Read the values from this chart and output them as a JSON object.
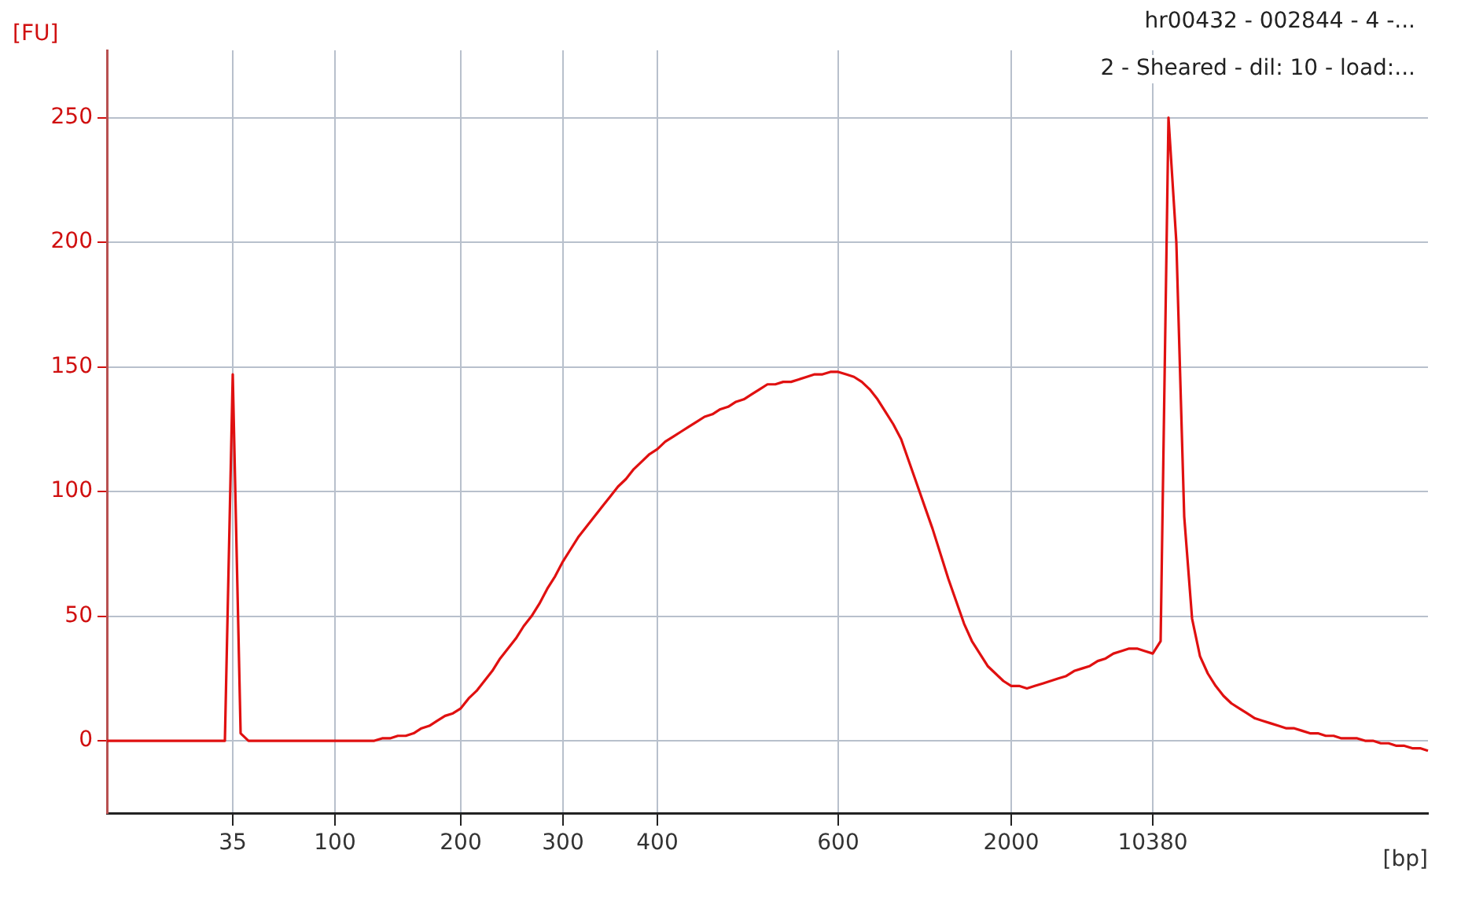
{
  "chart_data": {
    "type": "line",
    "xlabel": "[bp]",
    "ylabel": "[FU]",
    "annotations": [
      "hr00432 - 002844 - 4 -...",
      "2 - Sheared - dil: 10 - load:..."
    ],
    "categories": [
      null,
      null,
      null,
      null,
      null,
      null,
      null,
      null,
      null,
      null,
      null,
      null,
      null,
      null,
      null,
      null,
      "35",
      null,
      null,
      null,
      null,
      null,
      null,
      null,
      null,
      null,
      null,
      null,
      null,
      "100",
      null,
      null,
      null,
      null,
      null,
      null,
      null,
      null,
      null,
      null,
      null,
      null,
      null,
      null,
      null,
      "200",
      null,
      null,
      null,
      null,
      null,
      null,
      null,
      null,
      null,
      null,
      null,
      null,
      "300",
      null,
      null,
      null,
      null,
      null,
      null,
      null,
      null,
      null,
      null,
      null,
      "400",
      null,
      null,
      null,
      null,
      null,
      null,
      null,
      null,
      null,
      null,
      null,
      null,
      null,
      null,
      null,
      null,
      null,
      null,
      null,
      null,
      null,
      null,
      "600",
      null,
      null,
      null,
      null,
      null,
      null,
      null,
      null,
      null,
      null,
      null,
      null,
      null,
      null,
      null,
      null,
      null,
      null,
      null,
      null,
      null,
      "2000",
      null,
      null,
      null,
      null,
      null,
      null,
      null,
      null,
      null,
      null,
      null,
      null,
      null,
      null,
      null,
      null,
      null,
      "10380",
      null,
      null,
      null,
      null,
      null,
      null,
      null,
      null,
      null,
      null,
      null,
      null,
      null,
      null,
      null,
      null,
      null,
      null,
      null,
      null,
      null,
      null,
      null,
      null,
      null,
      null,
      null,
      null,
      null,
      null,
      null,
      null,
      null,
      null,
      null
    ],
    "series": [
      {
        "color": "#e01010",
        "values": [
          0,
          0,
          0,
          0,
          0,
          0,
          0,
          0,
          0,
          0,
          0,
          0,
          0,
          0,
          0,
          0,
          147,
          3,
          0,
          0,
          0,
          0,
          0,
          0,
          0,
          0,
          0,
          0,
          0,
          0,
          0,
          0,
          0,
          0,
          0,
          1,
          1,
          2,
          2,
          3,
          5,
          6,
          8,
          10,
          11,
          13,
          17,
          20,
          24,
          28,
          33,
          37,
          41,
          46,
          50,
          55,
          61,
          66,
          72,
          77,
          82,
          86,
          90,
          94,
          98,
          102,
          105,
          109,
          112,
          115,
          117,
          120,
          122,
          124,
          126,
          128,
          130,
          131,
          133,
          134,
          136,
          137,
          139,
          141,
          143,
          143,
          144,
          144,
          145,
          146,
          147,
          147,
          148,
          148,
          147,
          146,
          144,
          141,
          137,
          132,
          127,
          121,
          112,
          103,
          94,
          85,
          75,
          65,
          56,
          47,
          40,
          35,
          30,
          27,
          24,
          22,
          22,
          21,
          22,
          23,
          24,
          25,
          26,
          28,
          29,
          30,
          32,
          33,
          35,
          36,
          37,
          37,
          36,
          35,
          40,
          250,
          200,
          90,
          49,
          34,
          27,
          22,
          18,
          15,
          13,
          11,
          9,
          8,
          7,
          6,
          5,
          5,
          4,
          3,
          3,
          2,
          2,
          1,
          1,
          1,
          0,
          0,
          -1,
          -1,
          -2,
          -2,
          -3,
          -3,
          -4
        ]
      }
    ],
    "ylim": [
      -29,
      277
    ],
    "yticks": [
      0,
      50,
      100,
      150,
      200,
      250
    ],
    "grid": true,
    "legend": false,
    "marker": "none",
    "line_style": "solid"
  }
}
